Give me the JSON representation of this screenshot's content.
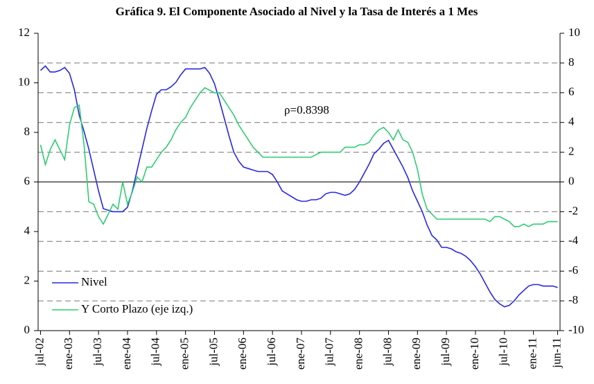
{
  "chart_data": {
    "type": "line",
    "title": "Gráfica 9. El Componente Asociado al Nivel y la Tasa de Interés a 1 Mes",
    "annotations": [
      "ρ=0.8398"
    ],
    "categories": [
      "jul-02",
      null,
      null,
      null,
      null,
      null,
      "ene-03",
      null,
      null,
      null,
      null,
      null,
      "jul-03",
      null,
      null,
      null,
      null,
      null,
      "ene-04",
      null,
      null,
      null,
      null,
      null,
      "jul-04",
      null,
      null,
      null,
      null,
      null,
      "ene-05",
      null,
      null,
      null,
      null,
      null,
      "jul-05",
      null,
      null,
      null,
      null,
      null,
      "ene-06",
      null,
      null,
      null,
      null,
      null,
      "jul-06",
      null,
      null,
      null,
      null,
      null,
      "ene-07",
      null,
      null,
      null,
      null,
      null,
      "jul-07",
      null,
      null,
      null,
      null,
      null,
      "ene-08",
      null,
      null,
      null,
      null,
      null,
      "jul-08",
      null,
      null,
      null,
      null,
      null,
      "ene-09",
      null,
      null,
      null,
      null,
      null,
      "jul-09",
      null,
      null,
      null,
      null,
      null,
      "ene-10",
      null,
      null,
      null,
      null,
      null,
      "jul-10",
      null,
      null,
      null,
      null,
      null,
      "ene-11",
      null,
      null,
      null,
      null,
      "jun-11"
    ],
    "series": [
      {
        "name": "Nivel",
        "color": "#2626e6",
        "axis": "y2",
        "values": [
          7.5,
          7.8,
          7.4,
          7.4,
          7.5,
          7.7,
          7.3,
          6.2,
          4.5,
          3.4,
          2.2,
          0.8,
          -0.6,
          -1.8,
          -1.9,
          -2.0,
          -2.0,
          -2.0,
          -1.7,
          -0.6,
          0.8,
          2.2,
          3.6,
          4.8,
          5.9,
          6.2,
          6.2,
          6.4,
          6.7,
          7.2,
          7.6,
          7.6,
          7.6,
          7.6,
          7.7,
          7.3,
          6.6,
          5.5,
          4.3,
          3.1,
          2.0,
          1.4,
          1.0,
          0.9,
          0.8,
          0.7,
          0.7,
          0.7,
          0.5,
          0,
          -0.6,
          -0.8,
          -1.0,
          -1.2,
          -1.3,
          -1.3,
          -1.2,
          -1.2,
          -1.1,
          -0.8,
          -0.7,
          -0.7,
          -0.8,
          -0.9,
          -0.8,
          -0.5,
          0,
          0.6,
          1.2,
          1.9,
          2.2,
          2.6,
          2.8,
          2.2,
          1.6,
          1.0,
          0.3,
          -0.6,
          -1.3,
          -2.0,
          -2.9,
          -3.6,
          -3.9,
          -4.4,
          -4.4,
          -4.5,
          -4.7,
          -4.8,
          -5.0,
          -5.3,
          -5.7,
          -6.2,
          -6.8,
          -7.4,
          -7.9,
          -8.2,
          -8.4,
          -8.3,
          -8.0,
          -7.6,
          -7.3,
          -7.0,
          -6.9,
          -6.9,
          -7.0,
          -7.0,
          -7.0,
          -7.1
        ]
      },
      {
        "name": "Y Corto Plazo (eje izq.)",
        "color": "#2ecc71",
        "values": [
          7.5,
          6.7,
          7.3,
          7.7,
          7.3,
          6.9,
          8.3,
          9.0,
          9.1,
          7.5,
          5.2,
          5.1,
          4.6,
          4.3,
          4.7,
          5.1,
          4.9,
          6.0,
          5.1,
          5.6,
          6.2,
          6.0,
          6.6,
          6.6,
          6.9,
          7.2,
          7.4,
          7.7,
          8.1,
          8.4,
          8.6,
          9.0,
          9.3,
          9.6,
          9.8,
          9.7,
          9.6,
          9.6,
          9.3,
          9.0,
          8.7,
          8.3,
          8.0,
          7.7,
          7.4,
          7.2,
          7.0,
          7.0,
          7.0,
          7.0,
          7.0,
          7.0,
          7.0,
          7.0,
          7.0,
          7.0,
          7.0,
          7.1,
          7.2,
          7.2,
          7.2,
          7.2,
          7.2,
          7.4,
          7.4,
          7.4,
          7.5,
          7.5,
          7.6,
          7.9,
          8.1,
          8.2,
          8.0,
          7.7,
          8.1,
          7.7,
          7.6,
          7.2,
          6.5,
          5.5,
          4.9,
          4.7,
          4.5,
          4.5,
          4.5,
          4.5,
          4.5,
          4.5,
          4.5,
          4.5,
          4.5,
          4.5,
          4.5,
          4.4,
          4.6,
          4.6,
          4.5,
          4.4,
          4.2,
          4.2,
          4.3,
          4.2,
          4.3,
          4.3,
          4.3,
          4.4,
          4.4,
          4.4
        ]
      }
    ],
    "ylim": [
      0,
      12
    ],
    "yticks": [
      0,
      2,
      4,
      6,
      8,
      10,
      12
    ],
    "y2lim": [
      -10,
      10
    ],
    "y2ticks": [
      -10,
      -8,
      -6,
      -4,
      -2,
      0,
      2,
      4,
      6,
      8,
      10
    ],
    "grid": true,
    "legend": "lower-left"
  }
}
